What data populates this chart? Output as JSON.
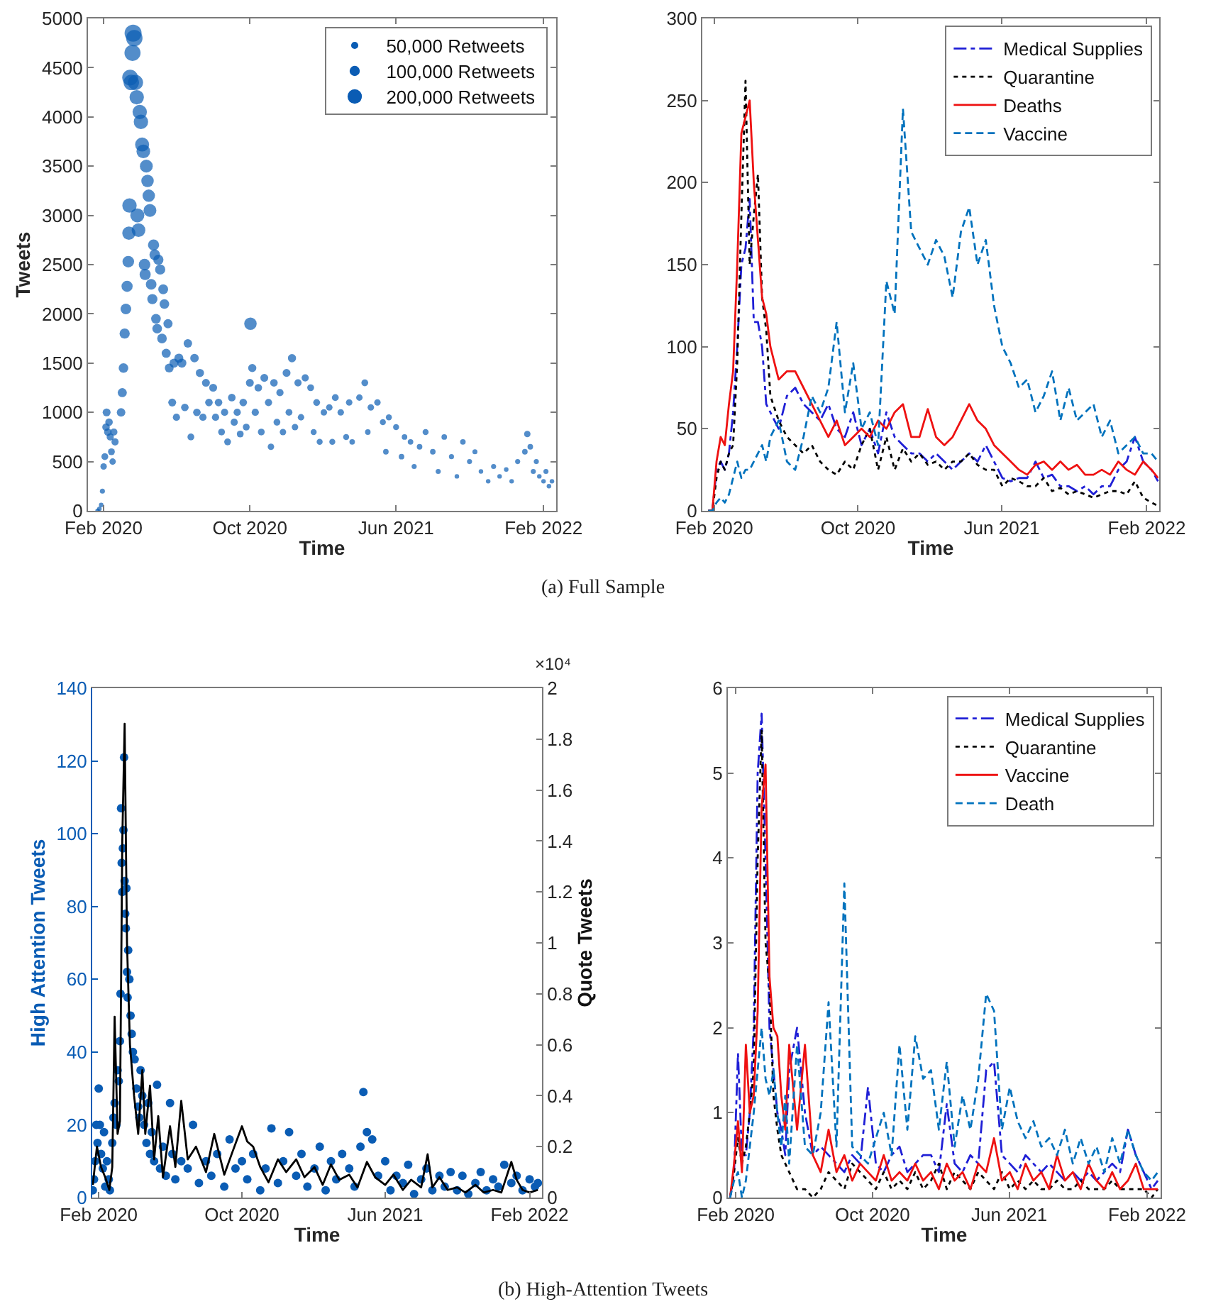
{
  "chart_data": [
    {
      "type": "bubble",
      "xlabel": "Time",
      "ylabel": "Tweets",
      "color": "#0a5cb4",
      "marker": "circle",
      "xlim": [
        "2020-01-06",
        "2022-02-22"
      ],
      "xticks": [
        {
          "value": "2020-02-01",
          "label": "Feb 2020"
        },
        {
          "value": "2020-10-01",
          "label": "Oct 2020"
        },
        {
          "value": "2021-06-01",
          "label": "Jun 2021"
        },
        {
          "value": "2022-02-01",
          "label": "Feb 2022"
        }
      ],
      "ylim": [
        0,
        5000
      ],
      "yticks": [
        0,
        500,
        1000,
        1500,
        2000,
        2500,
        3000,
        3500,
        4000,
        4500,
        5000
      ],
      "size_legend": [
        {
          "value": 50000,
          "label": "50,000 Retweets"
        },
        {
          "value": 100000,
          "label": "100,000 Retweets"
        },
        {
          "value": 200000,
          "label": "200,000 Retweets"
        }
      ],
      "x": [
        "2020-01-22",
        "2020-01-25",
        "2020-01-28",
        "2020-01-30",
        "2020-02-01",
        "2020-02-03",
        "2020-02-05",
        "2020-02-06",
        "2020-02-08",
        "2020-02-10",
        "2020-02-12",
        "2020-02-14",
        "2020-02-16",
        "2020-02-18",
        "2020-02-20",
        "2020-03-01",
        "2020-03-03",
        "2020-03-05",
        "2020-03-07",
        "2020-03-09",
        "2020-03-11",
        "2020-03-13",
        "2020-03-14",
        "2020-03-15",
        "2020-03-16",
        "2020-03-18",
        "2020-03-20",
        "2020-03-21",
        "2020-03-23",
        "2020-03-25",
        "2020-03-27",
        "2020-03-28",
        "2020-03-30",
        "2020-04-01",
        "2020-04-03",
        "2020-04-05",
        "2020-04-07",
        "2020-04-09",
        "2020-04-10",
        "2020-04-12",
        "2020-04-14",
        "2020-04-16",
        "2020-04-18",
        "2020-04-20",
        "2020-04-22",
        "2020-04-24",
        "2020-04-26",
        "2020-04-28",
        "2020-04-30",
        "2020-05-02",
        "2020-05-05",
        "2020-05-08",
        "2020-05-10",
        "2020-05-12",
        "2020-05-15",
        "2020-05-18",
        "2020-05-20",
        "2020-05-25",
        "2020-05-28",
        "2020-06-01",
        "2020-06-05",
        "2020-06-10",
        "2020-06-15",
        "2020-06-20",
        "2020-06-25",
        "2020-07-01",
        "2020-07-05",
        "2020-07-10",
        "2020-07-15",
        "2020-07-20",
        "2020-07-25",
        "2020-08-01",
        "2020-08-05",
        "2020-08-10",
        "2020-08-15",
        "2020-08-20",
        "2020-08-25",
        "2020-09-01",
        "2020-09-05",
        "2020-09-10",
        "2020-09-15",
        "2020-09-20",
        "2020-09-25",
        "2020-10-01",
        "2020-10-02",
        "2020-10-05",
        "2020-10-10",
        "2020-10-15",
        "2020-10-20",
        "2020-10-25",
        "2020-11-01",
        "2020-11-05",
        "2020-11-10",
        "2020-11-15",
        "2020-11-20",
        "2020-11-25",
        "2020-12-01",
        "2020-12-05",
        "2020-12-10",
        "2020-12-15",
        "2020-12-20",
        "2020-12-25",
        "2021-01-01",
        "2021-01-10",
        "2021-01-15",
        "2021-01-20",
        "2021-01-25",
        "2021-02-01",
        "2021-02-10",
        "2021-02-15",
        "2021-02-20",
        "2021-03-01",
        "2021-03-10",
        "2021-03-15",
        "2021-03-20",
        "2021-04-01",
        "2021-04-10",
        "2021-04-15",
        "2021-04-20",
        "2021-05-01",
        "2021-05-10",
        "2021-05-15",
        "2021-05-20",
        "2021-06-01",
        "2021-06-10",
        "2021-06-15",
        "2021-06-25",
        "2021-07-01",
        "2021-07-10",
        "2021-07-20",
        "2021-08-01",
        "2021-08-10",
        "2021-08-20",
        "2021-09-01",
        "2021-09-10",
        "2021-09-20",
        "2021-10-01",
        "2021-10-10",
        "2021-10-20",
        "2021-11-01",
        "2021-11-10",
        "2021-11-20",
        "2021-12-01",
        "2021-12-10",
        "2021-12-20",
        "2022-01-01",
        "2022-01-05",
        "2022-01-10",
        "2022-01-15",
        "2022-01-20",
        "2022-01-25",
        "2022-02-01",
        "2022-02-05",
        "2022-02-10",
        "2022-02-15"
      ],
      "values": [
        0,
        20,
        60,
        200,
        450,
        550,
        850,
        1000,
        800,
        900,
        750,
        600,
        500,
        800,
        700,
        1000,
        1200,
        1450,
        1800,
        2050,
        2280,
        2530,
        2820,
        3100,
        4400,
        4350,
        4650,
        4850,
        4800,
        4350,
        4200,
        3000,
        2850,
        4050,
        3950,
        3720,
        3650,
        2500,
        2400,
        3500,
        3350,
        3200,
        3050,
        2300,
        2150,
        2700,
        2600,
        1950,
        1850,
        2550,
        2450,
        1750,
        2250,
        2100,
        1600,
        1900,
        1450,
        1100,
        1500,
        950,
        1550,
        1500,
        1050,
        1700,
        750,
        1550,
        1000,
        1400,
        950,
        1300,
        1100,
        1250,
        950,
        1100,
        800,
        1000,
        700,
        1150,
        900,
        1000,
        780,
        1100,
        850,
        1300,
        1900,
        1450,
        1000,
        1250,
        800,
        1350,
        1100,
        650,
        1300,
        900,
        1200,
        800,
        1400,
        1000,
        1550,
        850,
        1300,
        950,
        1350,
        1250,
        800,
        1100,
        700,
        1000,
        1050,
        700,
        1150,
        1000,
        750,
        1100,
        700,
        1150,
        1300,
        800,
        1050,
        1100,
        900,
        600,
        950,
        850,
        550,
        750,
        700,
        450,
        650,
        800,
        600,
        400,
        750,
        550,
        350,
        700,
        500,
        600,
        400,
        300,
        450,
        350,
        420,
        300,
        500,
        600,
        780,
        650,
        400,
        500,
        350,
        300,
        400,
        250,
        300
      ],
      "sizes": [
        20000,
        20000,
        20000,
        25000,
        40000,
        45000,
        55000,
        60000,
        55000,
        55000,
        50000,
        45000,
        40000,
        50000,
        50000,
        70000,
        80000,
        90000,
        100000,
        110000,
        120000,
        130000,
        170000,
        200000,
        240000,
        230000,
        250000,
        280000,
        260000,
        220000,
        200000,
        190000,
        180000,
        200000,
        200000,
        190000,
        180000,
        130000,
        120000,
        160000,
        150000,
        150000,
        160000,
        110000,
        100000,
        120000,
        110000,
        90000,
        90000,
        100000,
        100000,
        90000,
        95000,
        90000,
        80000,
        80000,
        75000,
        60000,
        80000,
        50000,
        80000,
        80000,
        55000,
        70000,
        45000,
        70000,
        55000,
        65000,
        50000,
        60000,
        55000,
        60000,
        50000,
        55000,
        45000,
        50000,
        45000,
        55000,
        50000,
        50000,
        45000,
        55000,
        45000,
        60000,
        150000,
        65000,
        50000,
        55000,
        45000,
        60000,
        50000,
        40000,
        55000,
        45000,
        50000,
        40000,
        60000,
        45000,
        65000,
        40000,
        50000,
        40000,
        50000,
        45000,
        35000,
        45000,
        35000,
        40000,
        40000,
        35000,
        45000,
        40000,
        35000,
        40000,
        30000,
        40000,
        45000,
        30000,
        40000,
        40000,
        35000,
        30000,
        35000,
        35000,
        30000,
        30000,
        30000,
        25000,
        30000,
        35000,
        30000,
        25000,
        30000,
        25000,
        20000,
        30000,
        25000,
        25000,
        20000,
        20000,
        25000,
        20000,
        20000,
        20000,
        25000,
        30000,
        40000,
        30000,
        25000,
        25000,
        20000,
        20000,
        25000,
        20000,
        20000
      ],
      "annotations": [
        "(a) Full Sample"
      ]
    },
    {
      "type": "line",
      "xlabel": "Time",
      "legend": "top right",
      "xlim": [
        "2020-01-12",
        "2022-02-22"
      ],
      "xticks": [
        {
          "value": "2020-02-01",
          "label": "Feb 2020"
        },
        {
          "value": "2020-10-01",
          "label": "Oct 2020"
        },
        {
          "value": "2021-06-01",
          "label": "Jun 2021"
        },
        {
          "value": "2022-02-01",
          "label": "Feb 2022"
        }
      ],
      "ylim": [
        0,
        300
      ],
      "yticks": [
        0,
        50,
        100,
        150,
        200,
        250,
        300
      ],
      "x": [
        "2020-01-22",
        "2020-01-29",
        "2020-02-05",
        "2020-02-12",
        "2020-02-19",
        "2020-02-26",
        "2020-03-04",
        "2020-03-11",
        "2020-03-18",
        "2020-03-25",
        "2020-04-01",
        "2020-04-08",
        "2020-04-15",
        "2020-04-22",
        "2020-04-29",
        "2020-05-06",
        "2020-05-20",
        "2020-06-03",
        "2020-06-17",
        "2020-07-01",
        "2020-07-15",
        "2020-07-29",
        "2020-08-12",
        "2020-08-26",
        "2020-09-09",
        "2020-09-23",
        "2020-10-07",
        "2020-10-21",
        "2020-11-04",
        "2020-11-18",
        "2020-12-02",
        "2020-12-16",
        "2020-12-30",
        "2021-01-13",
        "2021-01-27",
        "2021-02-10",
        "2021-02-24",
        "2021-03-10",
        "2021-03-24",
        "2021-04-07",
        "2021-04-21",
        "2021-05-05",
        "2021-05-19",
        "2021-06-02",
        "2021-06-16",
        "2021-06-30",
        "2021-07-14",
        "2021-07-28",
        "2021-08-11",
        "2021-08-25",
        "2021-09-08",
        "2021-09-22",
        "2021-10-06",
        "2021-10-20",
        "2021-11-03",
        "2021-11-17",
        "2021-12-01",
        "2021-12-15",
        "2021-12-29",
        "2022-01-12",
        "2022-01-26",
        "2022-02-09",
        "2022-02-20"
      ],
      "series": [
        {
          "name": "Medical Supplies",
          "color": "#1f1fd6",
          "line_style": "dashdot",
          "values": [
            0,
            0,
            25,
            30,
            25,
            35,
            60,
            100,
            150,
            160,
            190,
            115,
            115,
            100,
            65,
            60,
            50,
            70,
            75,
            65,
            60,
            55,
            65,
            50,
            45,
            60,
            40,
            50,
            35,
            60,
            45,
            40,
            35,
            35,
            30,
            35,
            30,
            25,
            30,
            35,
            30,
            40,
            30,
            20,
            18,
            20,
            20,
            30,
            20,
            22,
            15,
            15,
            12,
            15,
            10,
            15,
            15,
            25,
            30,
            45,
            30,
            25,
            18
          ]
        },
        {
          "name": "Quarantine",
          "color": "#000000",
          "line_style": "dotted",
          "values": [
            0,
            0,
            20,
            30,
            25,
            35,
            40,
            90,
            180,
            262,
            150,
            180,
            205,
            130,
            110,
            70,
            55,
            45,
            40,
            35,
            40,
            30,
            25,
            22,
            30,
            25,
            40,
            50,
            25,
            45,
            25,
            38,
            30,
            35,
            28,
            30,
            25,
            30,
            30,
            35,
            28,
            25,
            25,
            15,
            20,
            18,
            15,
            15,
            20,
            12,
            14,
            10,
            12,
            10,
            8,
            10,
            12,
            12,
            10,
            18,
            8,
            5,
            3
          ]
        },
        {
          "name": "Deaths",
          "color": "#ee1111",
          "line_style": "solid",
          "values": [
            0,
            0,
            30,
            45,
            40,
            65,
            85,
            150,
            230,
            240,
            250,
            200,
            165,
            130,
            120,
            100,
            80,
            85,
            85,
            75,
            65,
            55,
            45,
            55,
            40,
            45,
            50,
            45,
            55,
            50,
            60,
            65,
            45,
            45,
            62,
            45,
            40,
            45,
            55,
            65,
            55,
            50,
            40,
            35,
            30,
            25,
            22,
            28,
            30,
            25,
            30,
            25,
            28,
            22,
            22,
            25,
            22,
            30,
            25,
            22,
            30,
            25,
            20
          ]
        },
        {
          "name": "Vaccine",
          "color": "#0072bd",
          "line_style": "dashed",
          "values": [
            0,
            0,
            5,
            8,
            5,
            10,
            20,
            30,
            20,
            25,
            25,
            30,
            35,
            40,
            30,
            45,
            55,
            30,
            25,
            45,
            70,
            60,
            75,
            115,
            60,
            90,
            50,
            60,
            40,
            140,
            120,
            245,
            170,
            160,
            150,
            165,
            155,
            130,
            170,
            185,
            150,
            165,
            125,
            100,
            90,
            75,
            80,
            60,
            70,
            85,
            55,
            75,
            55,
            60,
            65,
            45,
            55,
            35,
            40,
            45,
            35,
            35,
            30
          ]
        }
      ]
    },
    {
      "type": "scatter",
      "xlabel": "Time",
      "ylabel": "High Attention Tweets",
      "y2label": "Quote Tweets",
      "xlim": [
        "2020-01-21",
        "2022-02-22"
      ],
      "xticks": [
        {
          "value": "2020-02-01",
          "label": "Feb 2020"
        },
        {
          "value": "2020-10-01",
          "label": "Oct 2020"
        },
        {
          "value": "2021-06-01",
          "label": "Jun 2021"
        },
        {
          "value": "2022-02-01",
          "label": "Feb 2022"
        }
      ],
      "ylim": [
        0,
        140
      ],
      "yticks": [
        0,
        20,
        40,
        60,
        80,
        100,
        120,
        140
      ],
      "y2lim": [
        0,
        2
      ],
      "y2ticks": [
        0,
        0.2,
        0.4,
        0.6,
        0.8,
        1,
        1.2,
        1.4,
        1.6,
        1.8,
        2
      ],
      "annotations": [
        "×10⁴"
      ],
      "series": [
        {
          "color": "#0a5cb4",
          "marker": "circle",
          "x": [
            "2020-01-22",
            "2020-01-24",
            "2020-01-26",
            "2020-01-28",
            "2020-01-30",
            "2020-02-01",
            "2020-02-03",
            "2020-02-05",
            "2020-02-08",
            "2020-02-10",
            "2020-02-12",
            "2020-02-15",
            "2020-02-18",
            "2020-02-20",
            "2020-02-24",
            "2020-02-26",
            "2020-02-28",
            "2020-03-02",
            "2020-03-04",
            "2020-03-06",
            "2020-03-08",
            "2020-03-09",
            "2020-03-10",
            "2020-03-11",
            "2020-03-12",
            "2020-03-13",
            "2020-03-14",
            "2020-03-15",
            "2020-03-16",
            "2020-03-17",
            "2020-03-18",
            "2020-03-19",
            "2020-03-20",
            "2020-03-21",
            "2020-03-22",
            "2020-03-24",
            "2020-03-26",
            "2020-03-28",
            "2020-03-30",
            "2020-04-02",
            "2020-04-05",
            "2020-04-08",
            "2020-04-10",
            "2020-04-12",
            "2020-04-15",
            "2020-04-18",
            "2020-04-22",
            "2020-04-25",
            "2020-04-28",
            "2020-05-01",
            "2020-05-05",
            "2020-05-10",
            "2020-05-15",
            "2020-05-20",
            "2020-05-25",
            "2020-06-01",
            "2020-06-05",
            "2020-06-10",
            "2020-06-20",
            "2020-07-01",
            "2020-07-10",
            "2020-07-20",
            "2020-08-01",
            "2020-08-10",
            "2020-08-20",
            "2020-09-01",
            "2020-09-10",
            "2020-09-20",
            "2020-10-01",
            "2020-10-10",
            "2020-10-20",
            "2020-11-01",
            "2020-11-10",
            "2020-11-20",
            "2020-12-01",
            "2020-12-10",
            "2020-12-20",
            "2021-01-01",
            "2021-01-10",
            "2021-01-20",
            "2021-02-01",
            "2021-02-10",
            "2021-02-20",
            "2021-03-01",
            "2021-03-10",
            "2021-03-20",
            "2021-04-01",
            "2021-04-10",
            "2021-04-20",
            "2021-04-25",
            "2021-05-01",
            "2021-05-10",
            "2021-05-20",
            "2021-06-01",
            "2021-06-10",
            "2021-06-20",
            "2021-07-01",
            "2021-07-10",
            "2021-07-20",
            "2021-08-01",
            "2021-08-10",
            "2021-08-20",
            "2021-09-01",
            "2021-09-10",
            "2021-09-20",
            "2021-10-01",
            "2021-10-10",
            "2021-10-20",
            "2021-11-01",
            "2021-11-10",
            "2021-11-20",
            "2021-12-01",
            "2021-12-10",
            "2021-12-20",
            "2022-01-01",
            "2022-01-10",
            "2022-01-20",
            "2022-02-01",
            "2022-02-10",
            "2022-02-15"
          ],
          "values": [
            2,
            5,
            10,
            20,
            15,
            30,
            20,
            12,
            8,
            18,
            3,
            10,
            5,
            2,
            15,
            22,
            26,
            20,
            35,
            32,
            43,
            56,
            107,
            92,
            84,
            96,
            101,
            121,
            87,
            78,
            74,
            85,
            62,
            55,
            68,
            60,
            50,
            45,
            40,
            38,
            30,
            25,
            22,
            35,
            28,
            20,
            15,
            26,
            12,
            18,
            10,
            31,
            8,
            14,
            6,
            26,
            12,
            5,
            10,
            8,
            20,
            4,
            10,
            6,
            12,
            3,
            16,
            8,
            10,
            5,
            12,
            2,
            8,
            19,
            4,
            10,
            18,
            6,
            12,
            3,
            8,
            14,
            2,
            10,
            5,
            12,
            8,
            3,
            14,
            29,
            18,
            16,
            6,
            10,
            2,
            6,
            4,
            9,
            1,
            5,
            8,
            2,
            6,
            3,
            7,
            2,
            6,
            1,
            4,
            7,
            2,
            5,
            3,
            9,
            4,
            6,
            2,
            5,
            3,
            4
          ]
        },
        {
          "type": "line",
          "axis": "y2",
          "color": "#000000",
          "line_style": "solid",
          "x": [
            "2020-01-22",
            "2020-01-29",
            "2020-02-05",
            "2020-02-12",
            "2020-02-19",
            "2020-02-24",
            "2020-02-28",
            "2020-03-04",
            "2020-03-08",
            "2020-03-12",
            "2020-03-16",
            "2020-03-20",
            "2020-03-25",
            "2020-04-01",
            "2020-04-08",
            "2020-04-15",
            "2020-04-20",
            "2020-04-28",
            "2020-05-05",
            "2020-05-12",
            "2020-05-20",
            "2020-06-01",
            "2020-06-10",
            "2020-06-20",
            "2020-07-01",
            "2020-07-15",
            "2020-08-01",
            "2020-08-15",
            "2020-09-01",
            "2020-09-15",
            "2020-10-01",
            "2020-10-10",
            "2020-10-20",
            "2020-11-01",
            "2020-11-15",
            "2020-12-01",
            "2020-12-15",
            "2021-01-01",
            "2021-01-15",
            "2021-02-01",
            "2021-02-15",
            "2021-03-01",
            "2021-03-15",
            "2021-04-01",
            "2021-04-15",
            "2021-05-01",
            "2021-05-15",
            "2021-06-01",
            "2021-06-15",
            "2021-07-01",
            "2021-07-15",
            "2021-08-01",
            "2021-08-12",
            "2021-08-20",
            "2021-09-01",
            "2021-09-15",
            "2021-10-01",
            "2021-10-15",
            "2021-11-01",
            "2021-11-15",
            "2021-12-01",
            "2021-12-15",
            "2022-01-01",
            "2022-01-10",
            "2022-01-20",
            "2022-02-01",
            "2022-02-15"
          ],
          "values": [
            0.05,
            0.2,
            0.12,
            0.08,
            0.03,
            0.12,
            0.71,
            0.25,
            0.3,
            1.4,
            1.86,
            1,
            0.6,
            0.4,
            0.25,
            0.5,
            0.25,
            0.44,
            0.15,
            0.32,
            0.08,
            0.28,
            0.12,
            0.38,
            0.15,
            0.2,
            0.1,
            0.25,
            0.09,
            0.18,
            0.28,
            0.22,
            0.2,
            0.12,
            0.06,
            0.15,
            0.1,
            0.15,
            0.08,
            0.12,
            0.05,
            0.13,
            0.07,
            0.09,
            0.04,
            0.14,
            0.08,
            0.05,
            0.09,
            0.03,
            0.07,
            0.04,
            0.17,
            0.04,
            0.08,
            0.03,
            0.04,
            0.02,
            0.05,
            0.02,
            0.03,
            0.02,
            0.14,
            0.07,
            0.03,
            0.02,
            0.03
          ]
        }
      ]
    },
    {
      "type": "line",
      "xlabel": "Time",
      "legend": "top right",
      "xlim": [
        "2020-01-18",
        "2022-02-25"
      ],
      "xticks": [
        {
          "value": "2020-02-01",
          "label": "Feb 2020"
        },
        {
          "value": "2020-10-01",
          "label": "Oct 2020"
        },
        {
          "value": "2021-06-01",
          "label": "Jun 2021"
        },
        {
          "value": "2022-02-01",
          "label": "Feb 2022"
        }
      ],
      "ylim": [
        0,
        6
      ],
      "yticks": [
        0,
        1,
        2,
        3,
        4,
        5,
        6
      ],
      "annotations": [
        "(b) High-Attention Tweets"
      ],
      "x": [
        "2020-01-22",
        "2020-01-29",
        "2020-02-05",
        "2020-02-12",
        "2020-02-19",
        "2020-02-26",
        "2020-03-04",
        "2020-03-11",
        "2020-03-18",
        "2020-03-25",
        "2020-04-01",
        "2020-04-08",
        "2020-04-15",
        "2020-04-22",
        "2020-04-29",
        "2020-05-06",
        "2020-05-20",
        "2020-06-03",
        "2020-06-17",
        "2020-07-01",
        "2020-07-15",
        "2020-07-29",
        "2020-08-12",
        "2020-08-26",
        "2020-09-09",
        "2020-09-23",
        "2020-10-07",
        "2020-10-21",
        "2020-11-04",
        "2020-11-18",
        "2020-12-02",
        "2020-12-16",
        "2020-12-30",
        "2021-01-13",
        "2021-01-27",
        "2021-02-10",
        "2021-02-24",
        "2021-03-10",
        "2021-03-24",
        "2021-04-07",
        "2021-04-21",
        "2021-05-05",
        "2021-05-19",
        "2021-06-02",
        "2021-06-16",
        "2021-06-30",
        "2021-07-14",
        "2021-07-28",
        "2021-08-11",
        "2021-08-25",
        "2021-09-08",
        "2021-09-22",
        "2021-10-06",
        "2021-10-20",
        "2021-11-03",
        "2021-11-17",
        "2021-12-01",
        "2021-12-15",
        "2021-12-29",
        "2022-01-12",
        "2022-01-26",
        "2022-02-09",
        "2022-02-20"
      ],
      "series": [
        {
          "name": "Medical Supplies",
          "color": "#1f1fd6",
          "line_style": "dashdot",
          "values": [
            0,
            0.3,
            1.7,
            0.5,
            0.5,
            1,
            2,
            5,
            5.7,
            4,
            2,
            1.5,
            1,
            0.8,
            0.5,
            1.5,
            2,
            1,
            0.5,
            0.6,
            0.5,
            0.4,
            0.3,
            0.5,
            0.4,
            1.3,
            0.4,
            0.3,
            0.5,
            0.6,
            0.3,
            0.4,
            0.5,
            0.5,
            0.3,
            1.1,
            0.4,
            0.3,
            0.5,
            0.4,
            1.5,
            1.6,
            0.5,
            0.4,
            0.3,
            0.5,
            0.4,
            0.3,
            0.4,
            0.3,
            0.2,
            0.3,
            0.2,
            0.3,
            0.2,
            0.3,
            0.4,
            0.3,
            0.8,
            0.5,
            0.3,
            0.1,
            0.2
          ]
        },
        {
          "name": "Quarantine",
          "color": "#000000",
          "line_style": "dotted",
          "values": [
            0,
            0.3,
            0.7,
            0.4,
            0.6,
            1,
            1.5,
            4,
            5.5,
            3,
            2.5,
            1.2,
            0.8,
            0.5,
            0.4,
            0.3,
            0.1,
            0.1,
            0,
            0.1,
            0.3,
            0.2,
            0.1,
            0.4,
            0.3,
            0.2,
            0.1,
            0.3,
            0.1,
            0.2,
            0.1,
            0.3,
            0.1,
            0.2,
            0.4,
            0.1,
            0.3,
            0.2,
            0.1,
            0.3,
            0.2,
            0.1,
            0.3,
            0.1,
            0.2,
            0.1,
            0.2,
            0.1,
            0.1,
            0.2,
            0.1,
            0.1,
            0.2,
            0.1,
            0.1,
            0.1,
            0.2,
            0.1,
            0.1,
            0.1,
            0.1,
            0,
            0.1
          ]
        },
        {
          "name": "Vaccine",
          "color": "#ee1111",
          "line_style": "solid",
          "values": [
            0,
            0.4,
            0.9,
            0.3,
            1.8,
            1,
            1.2,
            2.2,
            4.6,
            5.1,
            2.6,
            2,
            1.9,
            1.2,
            0.8,
            1.8,
            0.8,
            1.8,
            0.5,
            0.3,
            0.8,
            0.3,
            0.5,
            0.2,
            0.4,
            0.3,
            0.2,
            0.5,
            0.2,
            0.3,
            0.2,
            0.4,
            0.2,
            0.3,
            0.1,
            0.4,
            0.2,
            0.3,
            0.1,
            0.4,
            0.3,
            0.7,
            0.2,
            0.3,
            0.1,
            0.4,
            0.2,
            0.3,
            0.1,
            0.5,
            0.2,
            0.3,
            0.1,
            0.4,
            0.2,
            0.1,
            0.3,
            0.1,
            0.2,
            0.4,
            0.1,
            0.1,
            0.1
          ]
        },
        {
          "name": "Death",
          "color": "#0072bd",
          "line_style": "dashed",
          "values": [
            0,
            0.2,
            0.3,
            0,
            0.2,
            0.6,
            1,
            1.5,
            2,
            1.4,
            1.2,
            1.5,
            1,
            0.6,
            1.2,
            0.4,
            1.8,
            0.6,
            0.5,
            1,
            2.3,
            0.6,
            3.7,
            0.6,
            0.5,
            0.4,
            0.7,
            1,
            0.5,
            1.8,
            0.8,
            1.9,
            1.4,
            1.5,
            0.8,
            1.6,
            0.6,
            1.2,
            0.8,
            1.4,
            2.4,
            2.2,
            0.8,
            1.3,
            0.9,
            0.7,
            0.9,
            0.6,
            0.7,
            0.5,
            0.8,
            0.4,
            0.7,
            0.4,
            0.6,
            0.3,
            0.7,
            0.4,
            0.8,
            0.5,
            0.3,
            0.2,
            0.3
          ]
        }
      ]
    }
  ]
}
